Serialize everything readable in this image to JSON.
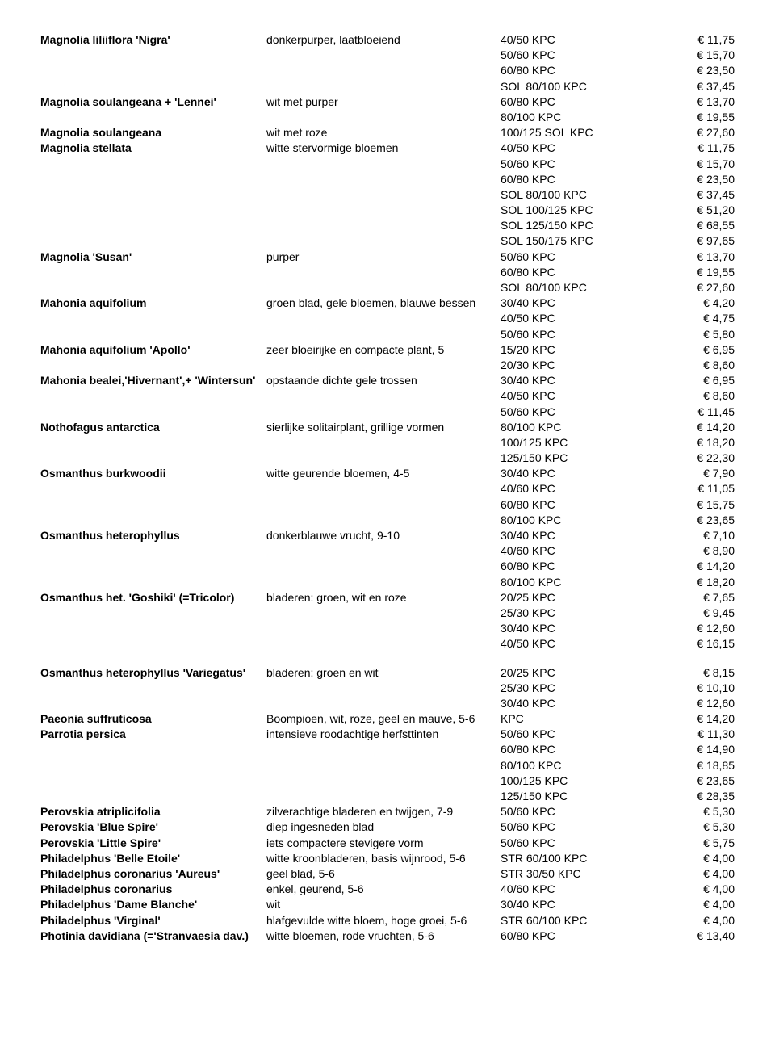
{
  "rows": [
    {
      "name": "Magnolia liliiflora 'Nigra'",
      "desc": "donkerpurper, laatbloeiend",
      "size": "40/50 KPC",
      "price": "€     11,75"
    },
    {
      "name": "",
      "desc": "",
      "size": "50/60 KPC",
      "price": "€     15,70"
    },
    {
      "name": "",
      "desc": "",
      "size": "60/80 KPC",
      "price": "€     23,50"
    },
    {
      "name": "",
      "desc": "",
      "size": "SOL  80/100 KPC",
      "price": "€     37,45"
    },
    {
      "name": "Magnolia soulangeana + 'Lennei'",
      "desc": "wit met purper",
      "size": "60/80 KPC",
      "price": "€     13,70"
    },
    {
      "name": "",
      "desc": "",
      "size": "80/100 KPC",
      "price": "€     19,55"
    },
    {
      "name": "Magnolia soulangeana",
      "desc": "wit met roze",
      "size": "100/125 SOL KPC",
      "price": "€     27,60"
    },
    {
      "name": "Magnolia stellata",
      "desc": "witte stervormige bloemen",
      "size": "40/50 KPC",
      "price": "€     11,75"
    },
    {
      "name": "",
      "desc": "",
      "size": "50/60 KPC",
      "price": "€     15,70"
    },
    {
      "name": "",
      "desc": "",
      "size": "60/80 KPC",
      "price": "€     23,50"
    },
    {
      "name": "",
      "desc": "",
      "size": "SOL  80/100 KPC",
      "price": "€     37,45"
    },
    {
      "name": "",
      "desc": "",
      "size": "SOL 100/125 KPC",
      "price": "€     51,20"
    },
    {
      "name": "",
      "desc": "",
      "size": "SOL 125/150 KPC",
      "price": "€     68,55"
    },
    {
      "name": "",
      "desc": "",
      "size": "SOL 150/175 KPC",
      "price": "€     97,65"
    },
    {
      "name": "Magnolia 'Susan'",
      "desc": "purper",
      "size": "50/60 KPC",
      "price": "€     13,70"
    },
    {
      "name": "",
      "desc": "",
      "size": "60/80 KPC",
      "price": "€     19,55"
    },
    {
      "name": "",
      "desc": "",
      "size": "SOL 80/100 KPC",
      "price": "€     27,60"
    },
    {
      "name": "Mahonia aquifolium",
      "desc": "groen blad, gele bloemen, blauwe bessen",
      "size": "30/40 KPC",
      "price": "€       4,20"
    },
    {
      "name": "",
      "desc": "",
      "size": "40/50 KPC",
      "price": "€       4,75"
    },
    {
      "name": "",
      "desc": "",
      "size": "50/60 KPC",
      "price": "€       5,80"
    },
    {
      "name": "Mahonia aquifolium 'Apollo'",
      "desc": "zeer bloeirijke en compacte plant, 5",
      "size": "15/20 KPC",
      "price": "€       6,95"
    },
    {
      "name": "",
      "desc": "",
      "size": "20/30 KPC",
      "price": "€       8,60"
    },
    {
      "name": "Mahonia bealei,'Hivernant',+ 'Wintersun'",
      "desc": "opstaande dichte gele trossen",
      "size": "30/40 KPC",
      "price": "€       6,95"
    },
    {
      "name": "",
      "desc": "",
      "size": "40/50 KPC",
      "price": "€       8,60"
    },
    {
      "name": "",
      "desc": "",
      "size": "50/60 KPC",
      "price": "€     11,45"
    },
    {
      "name": "Nothofagus antarctica",
      "desc": "sierlijke solitairplant, grillige vormen",
      "size": "80/100 KPC",
      "price": "€     14,20"
    },
    {
      "name": "",
      "desc": "",
      "size": "100/125 KPC",
      "price": "€     18,20"
    },
    {
      "name": "",
      "desc": "",
      "size": "125/150 KPC",
      "price": "€     22,30"
    },
    {
      "name": "Osmanthus burkwoodii",
      "desc": "witte geurende bloemen, 4-5",
      "size": "30/40 KPC",
      "price": "€       7,90"
    },
    {
      "name": "",
      "desc": "",
      "size": "40/60 KPC",
      "price": "€     11,05"
    },
    {
      "name": "",
      "desc": "",
      "size": "60/80 KPC",
      "price": "€     15,75"
    },
    {
      "name": "",
      "desc": "",
      "size": "80/100 KPC",
      "price": "€     23,65"
    },
    {
      "name": "Osmanthus heterophyllus",
      "desc": "donkerblauwe vrucht, 9-10",
      "size": "30/40 KPC",
      "price": "€       7,10"
    },
    {
      "name": "",
      "desc": "",
      "size": "40/60 KPC",
      "price": "€       8,90"
    },
    {
      "name": "",
      "desc": "",
      "size": "60/80 KPC",
      "price": "€     14,20"
    },
    {
      "name": "",
      "desc": "",
      "size": "80/100 KPC",
      "price": "€     18,20"
    },
    {
      "name": "Osmanthus het. 'Goshiki' (=Tricolor)",
      "desc": "bladeren: groen, wit en roze",
      "size": "20/25 KPC",
      "price": "€       7,65"
    },
    {
      "name": "",
      "desc": "",
      "size": "25/30 KPC",
      "price": "€       9,45"
    },
    {
      "name": "",
      "desc": "",
      "size": "30/40 KPC",
      "price": "€     12,60"
    },
    {
      "name": "",
      "desc": "",
      "size": "40/50 KPC",
      "price": "€     16,15"
    },
    {
      "gap": true
    },
    {
      "name": "Osmanthus heterophyllus 'Variegatus'",
      "desc": "bladeren: groen en wit",
      "size": "20/25 KPC",
      "price": "€       8,15"
    },
    {
      "name": "",
      "desc": "",
      "size": "25/30 KPC",
      "price": "€     10,10"
    },
    {
      "name": "",
      "desc": "",
      "size": "30/40 KPC",
      "price": "€     12,60"
    },
    {
      "name": "Paeonia suffruticosa",
      "desc": "Boompioen, wit, roze, geel en mauve, 5-6",
      "size": "KPC",
      "price": "€     14,20"
    },
    {
      "name": "Parrotia persica",
      "desc": "intensieve roodachtige herfsttinten",
      "size": "50/60 KPC",
      "price": "€     11,30"
    },
    {
      "name": "",
      "desc": "",
      "size": "60/80 KPC",
      "price": "€     14,90"
    },
    {
      "name": "",
      "desc": "",
      "size": "80/100 KPC",
      "price": "€     18,85"
    },
    {
      "name": "",
      "desc": "",
      "size": "100/125 KPC",
      "price": "€     23,65"
    },
    {
      "name": "",
      "desc": "",
      "size": "125/150 KPC",
      "price": "€     28,35"
    },
    {
      "name": "Perovskia atriplicifolia",
      "desc": "zilverachtige bladeren en twijgen,  7-9",
      "size": "50/60 KPC",
      "price": "€       5,30"
    },
    {
      "name": "Perovskia 'Blue Spire'",
      "desc": "diep ingesneden blad",
      "size": "50/60 KPC",
      "price": "€       5,30"
    },
    {
      "name": "Perovskia 'Little Spire'",
      "desc": "iets compactere stevigere vorm",
      "size": "50/60 KPC",
      "price": "€       5,75"
    },
    {
      "name": "Philadelphus 'Belle Etoile'",
      "desc": "witte kroonbladeren, basis wijnrood, 5-6",
      "size": "STR  60/100 KPC",
      "price": "€       4,00"
    },
    {
      "name": "Philadelphus coronarius 'Aureus'",
      "desc": "geel blad, 5-6",
      "size": "STR  30/50 KPC",
      "price": "€       4,00"
    },
    {
      "name": "Philadelphus coronarius",
      "desc": "enkel, geurend, 5-6",
      "size": "40/60 KPC",
      "price": "€       4,00"
    },
    {
      "name": "Philadelphus 'Dame Blanche'",
      "desc": "wit",
      "size": "30/40 KPC",
      "price": "€       4,00"
    },
    {
      "name": "Philadelphus 'Virginal'",
      "desc": "hlafgevulde witte bloem, hoge groei, 5-6",
      "size": "STR  60/100 KPC",
      "price": "€       4,00"
    },
    {
      "name": "Photinia davidiana (='Stranvaesia dav.)",
      "desc": "witte bloemen, rode vruchten, 5-6",
      "size": "60/80 KPC",
      "price": "€     13,40"
    }
  ]
}
